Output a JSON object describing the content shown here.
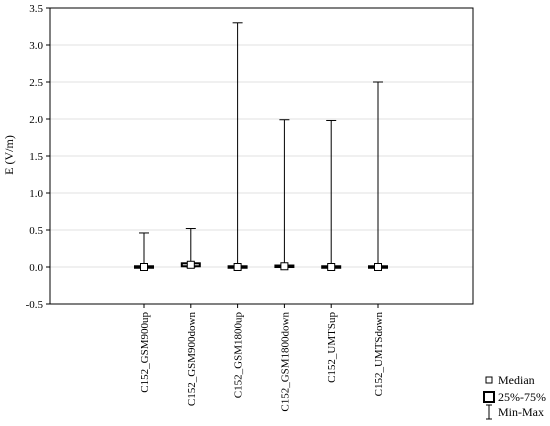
{
  "chart_data": {
    "type": "box",
    "ylabel": "E (V/m)",
    "ylim": [
      -0.5,
      3.5
    ],
    "yticks": [
      -0.5,
      0.0,
      0.5,
      1.0,
      1.5,
      2.0,
      2.5,
      3.0,
      3.5
    ],
    "ytick_labels": [
      "-0.5",
      "0.0",
      "0.5",
      "1.0",
      "1.5",
      "2.0",
      "2.5",
      "3.0",
      "3.5"
    ],
    "grid": true,
    "legend_position": "bottom-right",
    "categories": [
      "C152_GSM900up",
      "C152_GSM900down",
      "C152_GSM1800up",
      "C152_GSM1800down",
      "C152_UMTSup",
      "C152_UMTSdown"
    ],
    "min": [
      0.0,
      0.0,
      0.0,
      0.0,
      0.0,
      0.0
    ],
    "q1": [
      0.0,
      0.01,
      0.0,
      0.0,
      0.0,
      0.0
    ],
    "median": [
      0.0,
      0.03,
      0.0,
      0.01,
      0.0,
      0.0
    ],
    "q3": [
      0.01,
      0.05,
      0.01,
      0.02,
      0.01,
      0.01
    ],
    "max": [
      0.46,
      0.52,
      3.3,
      1.99,
      1.98,
      2.5
    ],
    "legend": [
      {
        "symbol": "median",
        "label": "Median"
      },
      {
        "symbol": "box",
        "label": "25%-75%"
      },
      {
        "symbol": "whisker",
        "label": "Min-Max"
      }
    ]
  }
}
